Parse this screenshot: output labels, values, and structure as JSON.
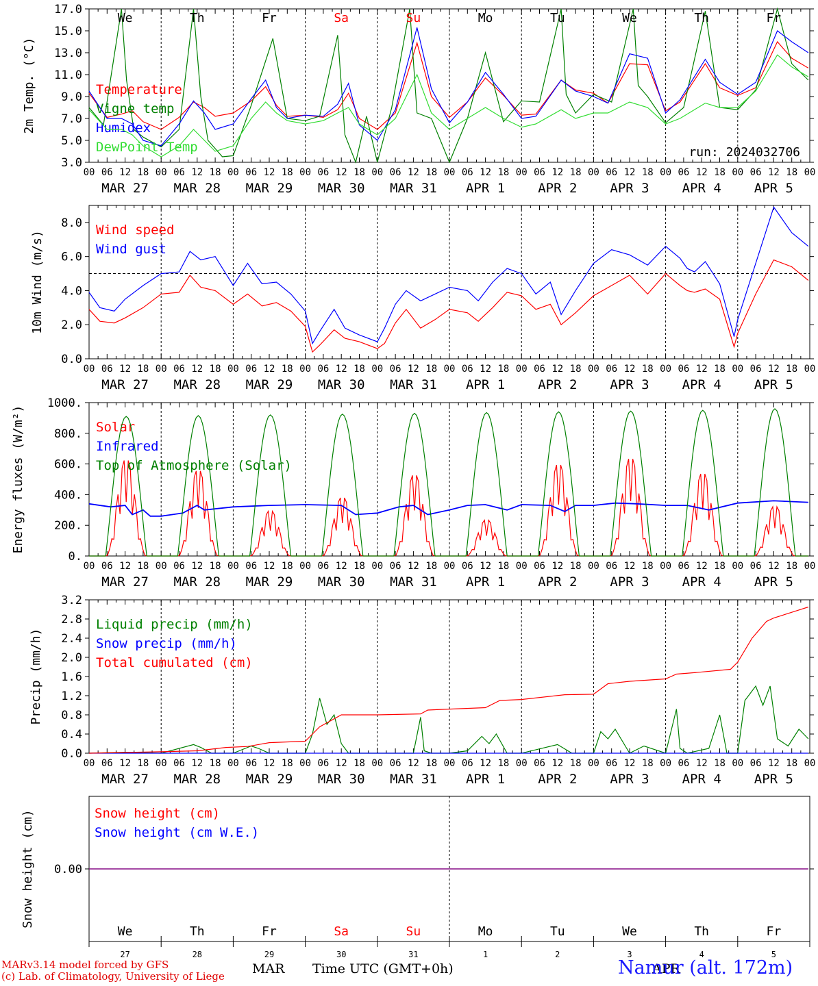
{
  "run_label": "run: 2024032706",
  "footer": {
    "model_line": "MARv3.14 model forced by GFS",
    "credit_line": "(c) Lab. of Climatology, University of Liege",
    "xlabel": "Time UTC (GMT+0h)",
    "month_label": "MAR",
    "month_label2": "APR",
    "station": "Namur (alt. 172m)"
  },
  "colors": {
    "red": "#ff0000",
    "darkgreen": "#008000",
    "blue": "#0000ff",
    "lightgreen": "#33dd33",
    "weekend": "#ff0000",
    "snow_line": "#800080"
  },
  "time_axis": {
    "hour_ticks": [
      "00",
      "06",
      "12",
      "18"
    ],
    "last_tick": "00",
    "dates": [
      "MAR 27",
      "MAR 28",
      "MAR 29",
      "MAR 30",
      "MAR 31",
      "APR 1",
      "APR 2",
      "APR 3",
      "APR 4",
      "APR 5"
    ],
    "days": [
      "We",
      "Th",
      "Fr",
      "Sa",
      "Su",
      "Mo",
      "Tu",
      "We",
      "Th",
      "Fr"
    ],
    "weekend": [
      false,
      false,
      false,
      true,
      true,
      false,
      false,
      false,
      false,
      false
    ],
    "day_numbers": [
      "27",
      "28",
      "29",
      "30",
      "31",
      "1",
      "2",
      "3",
      "4",
      "5"
    ]
  },
  "chart_data": [
    {
      "type": "line",
      "id": "temp",
      "ylabel": "2m Temp. (°C)",
      "ylim": [
        3.0,
        17.0
      ],
      "yticks": [
        3.0,
        5.0,
        7.0,
        9.0,
        11.0,
        13.0,
        15.0,
        17.0
      ],
      "x_unit": "days since 2024-03-27 00 UTC",
      "series": [
        {
          "name": "Temperature",
          "color": "red",
          "x": [
            0,
            0.25,
            0.45,
            0.6,
            0.75,
            1.0,
            1.25,
            1.45,
            1.6,
            1.75,
            2.0,
            2.25,
            2.45,
            2.6,
            2.75,
            3.0,
            3.25,
            3.45,
            3.6,
            3.75,
            4.0,
            4.25,
            4.55,
            4.75,
            5.0,
            5.25,
            5.5,
            5.75,
            6.0,
            6.2,
            6.55,
            6.75,
            7.0,
            7.2,
            7.5,
            7.75,
            8.0,
            8.2,
            8.55,
            8.75,
            9.0,
            9.25,
            9.55,
            9.75,
            9.98
          ],
          "values": [
            9.3,
            7.1,
            7.4,
            7.7,
            6.7,
            6.0,
            7.1,
            8.5,
            8.0,
            7.2,
            7.5,
            8.6,
            9.9,
            8.2,
            7.2,
            7.3,
            7.1,
            7.8,
            9.3,
            7.0,
            6.0,
            7.5,
            13.9,
            9.0,
            7.1,
            8.5,
            10.7,
            9.1,
            7.3,
            7.4,
            10.5,
            9.6,
            9.3,
            8.4,
            12.0,
            11.9,
            7.7,
            8.5,
            12.0,
            9.8,
            9.1,
            9.8,
            14.0,
            12.5,
            11.6
          ]
        },
        {
          "name": "Vigne temp",
          "color": "darkgreen",
          "x": [
            0,
            0.2,
            0.45,
            0.52,
            0.62,
            0.75,
            1.0,
            1.25,
            1.45,
            1.55,
            1.65,
            1.85,
            2.0,
            2.25,
            2.55,
            2.75,
            3.0,
            3.2,
            3.45,
            3.55,
            3.7,
            3.85,
            4.0,
            4.2,
            4.45,
            4.55,
            4.75,
            5.0,
            5.25,
            5.5,
            5.75,
            6.0,
            6.25,
            6.55,
            6.62,
            6.75,
            7.0,
            7.25,
            7.55,
            7.62,
            7.75,
            8.0,
            8.25,
            8.55,
            8.75,
            9.0,
            9.25,
            9.55,
            9.75,
            9.98
          ],
          "values": [
            8.0,
            6.4,
            17.0,
            10.5,
            6.0,
            5.3,
            4.4,
            6.0,
            17.0,
            9.0,
            5.0,
            3.5,
            3.6,
            8.2,
            14.3,
            7.0,
            6.8,
            7.2,
            14.6,
            5.5,
            3.0,
            7.2,
            3.0,
            8.0,
            17.0,
            7.5,
            7.0,
            3.0,
            7.0,
            13.0,
            6.7,
            8.6,
            8.5,
            17.0,
            9.2,
            7.5,
            9.2,
            8.5,
            17.0,
            10.0,
            9.0,
            6.6,
            8.0,
            16.8,
            8.0,
            7.8,
            9.6,
            17.0,
            12.0,
            10.5
          ]
        },
        {
          "name": "Humidex",
          "color": "blue",
          "x": [
            0,
            0.25,
            0.45,
            0.6,
            0.75,
            1.0,
            1.25,
            1.45,
            1.6,
            1.75,
            2.0,
            2.25,
            2.45,
            2.6,
            2.75,
            3.0,
            3.25,
            3.45,
            3.6,
            3.75,
            4.0,
            4.25,
            4.55,
            4.75,
            5.0,
            5.25,
            5.5,
            5.75,
            6.0,
            6.2,
            6.55,
            6.75,
            7.0,
            7.2,
            7.5,
            7.75,
            8.0,
            8.2,
            8.55,
            8.75,
            9.0,
            9.25,
            9.55,
            9.75,
            9.98
          ],
          "values": [
            9.5,
            7.0,
            7.0,
            6.5,
            5.0,
            4.5,
            6.5,
            8.6,
            7.5,
            6.0,
            6.5,
            8.8,
            10.5,
            8.0,
            7.0,
            7.3,
            7.2,
            8.3,
            10.2,
            6.4,
            5.0,
            7.8,
            15.3,
            9.7,
            6.6,
            8.5,
            11.2,
            9.2,
            7.0,
            7.2,
            10.5,
            9.5,
            9.0,
            8.4,
            12.9,
            12.5,
            7.5,
            8.7,
            12.4,
            10.3,
            9.2,
            10.3,
            15.0,
            14.0,
            13.0
          ]
        },
        {
          "name": "DewPoint Temp",
          "color": "lightgreen",
          "x": [
            0,
            0.25,
            0.45,
            0.6,
            0.75,
            1.0,
            1.25,
            1.45,
            1.6,
            1.75,
            2.0,
            2.25,
            2.45,
            2.6,
            2.75,
            3.0,
            3.25,
            3.45,
            3.6,
            3.75,
            4.0,
            4.25,
            4.55,
            4.75,
            5.0,
            5.25,
            5.5,
            5.75,
            6.0,
            6.2,
            6.55,
            6.75,
            7.0,
            7.2,
            7.5,
            7.75,
            8.0,
            8.2,
            8.55,
            8.75,
            9.0,
            9.25,
            9.55,
            9.75,
            9.98
          ],
          "values": [
            7.8,
            6.0,
            6.0,
            5.5,
            4.5,
            3.5,
            4.5,
            6.0,
            5.0,
            4.0,
            4.5,
            7.0,
            8.5,
            7.5,
            6.8,
            6.5,
            6.8,
            7.5,
            8.0,
            6.5,
            5.5,
            7.0,
            11.0,
            7.5,
            6.0,
            7.0,
            8.0,
            7.0,
            6.2,
            6.5,
            7.8,
            7.0,
            7.5,
            7.5,
            8.5,
            8.0,
            6.5,
            7.0,
            8.4,
            8.0,
            8.0,
            9.5,
            12.8,
            11.7,
            10.8
          ]
        }
      ]
    },
    {
      "type": "line",
      "id": "wind",
      "ylabel": "10m Wind (m/s)",
      "ylim": [
        0.0,
        9.0
      ],
      "yticks": [
        0.0,
        2.0,
        4.0,
        6.0,
        8.0
      ],
      "reference_line": 5.0,
      "x_unit": "days since 2024-03-27 00 UTC",
      "series": [
        {
          "name": "Wind speed",
          "color": "red",
          "x": [
            0,
            0.15,
            0.35,
            0.5,
            0.75,
            1.0,
            1.25,
            1.4,
            1.55,
            1.75,
            2.0,
            2.2,
            2.4,
            2.6,
            2.8,
            3.0,
            3.1,
            3.2,
            3.4,
            3.55,
            3.75,
            4.0,
            4.1,
            4.25,
            4.4,
            4.6,
            4.8,
            5.0,
            5.25,
            5.4,
            5.6,
            5.8,
            6.0,
            6.2,
            6.4,
            6.55,
            6.75,
            7.0,
            7.25,
            7.5,
            7.75,
            8.0,
            8.2,
            8.3,
            8.4,
            8.55,
            8.75,
            8.95,
            9.0,
            9.25,
            9.5,
            9.75,
            9.98
          ],
          "values": [
            2.9,
            2.2,
            2.1,
            2.4,
            3.0,
            3.8,
            3.9,
            4.9,
            4.2,
            4.0,
            3.2,
            3.8,
            3.1,
            3.3,
            2.8,
            1.9,
            0.4,
            0.8,
            1.7,
            1.2,
            1.0,
            0.6,
            0.9,
            2.1,
            2.9,
            1.8,
            2.3,
            2.9,
            2.7,
            2.2,
            3.0,
            3.9,
            3.7,
            2.9,
            3.2,
            2.0,
            2.7,
            3.7,
            4.3,
            4.9,
            3.8,
            5.0,
            4.3,
            4.0,
            3.9,
            4.1,
            3.5,
            0.7,
            1.5,
            3.8,
            5.8,
            5.4,
            4.6
          ]
        },
        {
          "name": "Wind gust",
          "color": "blue",
          "x": [
            0,
            0.15,
            0.35,
            0.5,
            0.75,
            1.0,
            1.25,
            1.4,
            1.55,
            1.75,
            2.0,
            2.2,
            2.4,
            2.6,
            2.8,
            3.0,
            3.1,
            3.2,
            3.4,
            3.55,
            3.75,
            4.0,
            4.1,
            4.25,
            4.4,
            4.6,
            4.8,
            5.0,
            5.25,
            5.4,
            5.6,
            5.8,
            6.0,
            6.2,
            6.4,
            6.55,
            6.75,
            7.0,
            7.25,
            7.5,
            7.75,
            8.0,
            8.2,
            8.3,
            8.4,
            8.55,
            8.75,
            8.95,
            9.0,
            9.25,
            9.5,
            9.75,
            9.98
          ],
          "values": [
            3.9,
            3.0,
            2.8,
            3.5,
            4.3,
            5.0,
            5.1,
            6.3,
            5.8,
            6.0,
            4.3,
            5.6,
            4.4,
            4.5,
            3.8,
            2.8,
            0.9,
            1.6,
            2.9,
            1.8,
            1.4,
            1.0,
            1.8,
            3.2,
            4.0,
            3.4,
            3.8,
            4.2,
            4.0,
            3.4,
            4.5,
            5.3,
            5.0,
            3.8,
            4.5,
            2.6,
            4.0,
            5.6,
            6.4,
            6.1,
            5.5,
            6.6,
            5.9,
            5.3,
            5.1,
            5.7,
            4.4,
            1.3,
            2.3,
            5.6,
            8.9,
            7.4,
            6.6
          ]
        }
      ]
    },
    {
      "type": "line",
      "id": "energy",
      "ylabel": "Energy fluxes (W/m²)",
      "ylim": [
        0.0,
        1000.0
      ],
      "yticks": [
        0.0,
        200.0,
        400.0,
        600.0,
        800.0,
        1000.0
      ],
      "ytick_labels": [
        "0.",
        "200.",
        "400.",
        "600.",
        "800.",
        "1000."
      ],
      "x_unit": "days since 2024-03-27 00 UTC",
      "toa_peaks": [
        910,
        915,
        920,
        925,
        930,
        935,
        940,
        945,
        950,
        960
      ],
      "solar_peaks": [
        640,
        570,
        300,
        390,
        540,
        240,
        610,
        650,
        550,
        330
      ],
      "series": [
        {
          "name": "Solar",
          "color": "red"
        },
        {
          "name": "Infrared",
          "color": "blue",
          "x": [
            0,
            0.3,
            0.5,
            0.6,
            0.75,
            0.85,
            1.0,
            1.3,
            1.5,
            1.6,
            2.0,
            2.5,
            3.0,
            3.5,
            3.7,
            4.0,
            4.3,
            4.5,
            4.7,
            5.0,
            5.25,
            5.5,
            5.8,
            6.0,
            6.4,
            6.6,
            6.75,
            7.0,
            7.3,
            7.6,
            8.0,
            8.3,
            8.6,
            9.0,
            9.5,
            9.98
          ],
          "values": [
            340,
            320,
            330,
            270,
            300,
            260,
            260,
            280,
            330,
            300,
            320,
            330,
            335,
            330,
            270,
            280,
            320,
            330,
            270,
            300,
            330,
            335,
            300,
            335,
            330,
            290,
            330,
            330,
            345,
            340,
            330,
            330,
            300,
            345,
            360,
            350
          ]
        },
        {
          "name": "Top of Atmosphere (Solar)",
          "color": "darkgreen"
        }
      ]
    },
    {
      "type": "line",
      "id": "precip",
      "ylabel": "Precip (mm/h)",
      "ylim": [
        0.0,
        3.2
      ],
      "yticks": [
        0.0,
        0.4,
        0.8,
        1.2,
        1.6,
        2.0,
        2.4,
        2.8,
        3.2
      ],
      "x_unit": "days since 2024-03-27 00 UTC",
      "series": [
        {
          "name": "Liquid precip (mm/h)",
          "color": "darkgreen",
          "x": [
            0,
            0.5,
            1.0,
            1.45,
            1.55,
            1.7,
            2.0,
            2.25,
            2.35,
            2.5,
            3.0,
            3.1,
            3.2,
            3.3,
            3.4,
            3.5,
            3.6,
            3.7,
            4.0,
            4.5,
            4.6,
            4.65,
            4.75,
            5.0,
            5.25,
            5.45,
            5.55,
            5.65,
            5.8,
            6.0,
            6.5,
            6.7,
            7.0,
            7.1,
            7.2,
            7.3,
            7.5,
            7.7,
            8.0,
            8.15,
            8.2,
            8.3,
            8.6,
            8.75,
            8.85,
            9.0,
            9.1,
            9.25,
            9.35,
            9.45,
            9.55,
            9.7,
            9.85,
            9.98
          ],
          "values": [
            0.0,
            0.02,
            0.0,
            0.18,
            0.12,
            0.0,
            0.0,
            0.15,
            0.1,
            0.0,
            0.0,
            0.4,
            1.15,
            0.6,
            0.8,
            0.2,
            0.0,
            0.0,
            0.0,
            0.0,
            0.75,
            0.05,
            0.0,
            0.0,
            0.05,
            0.35,
            0.2,
            0.4,
            0.0,
            0.0,
            0.18,
            0.0,
            0.0,
            0.45,
            0.3,
            0.5,
            0.0,
            0.15,
            0.0,
            0.92,
            0.1,
            0.0,
            0.1,
            0.8,
            0.0,
            0.0,
            1.1,
            1.4,
            1.0,
            1.4,
            0.3,
            0.15,
            0.5,
            0.3
          ]
        },
        {
          "name": "Snow precip (mm/h)",
          "color": "blue",
          "x": [
            0,
            9.98
          ],
          "values": [
            0.0,
            0.0
          ]
        },
        {
          "name": "Total cumulated (cm)",
          "color": "red",
          "x": [
            0,
            1.0,
            1.5,
            1.9,
            2.2,
            2.5,
            3.0,
            3.2,
            3.5,
            4.0,
            4.6,
            4.7,
            5.0,
            5.5,
            5.7,
            6.0,
            6.6,
            7.0,
            7.2,
            7.5,
            8.0,
            8.15,
            8.4,
            8.9,
            9.0,
            9.2,
            9.4,
            9.5,
            9.98
          ],
          "values": [
            0.0,
            0.03,
            0.05,
            0.12,
            0.14,
            0.22,
            0.25,
            0.55,
            0.8,
            0.8,
            0.82,
            0.9,
            0.92,
            0.95,
            1.1,
            1.12,
            1.22,
            1.23,
            1.45,
            1.5,
            1.55,
            1.65,
            1.68,
            1.75,
            1.9,
            2.4,
            2.75,
            2.82,
            3.05
          ]
        }
      ]
    },
    {
      "type": "line",
      "id": "snow",
      "ylabel": "Snow height (cm)",
      "ylim": [
        -1.0,
        1.0
      ],
      "yticks": [
        0.0
      ],
      "ytick_labels": [
        "0.00"
      ],
      "x_unit": "days since 2024-03-27 00 UTC",
      "series": [
        {
          "name": "Snow height (cm)",
          "color": "red",
          "x": [
            0,
            9.98
          ],
          "values": [
            0.0,
            0.0
          ]
        },
        {
          "name": "Snow height (cm W.E.)",
          "color": "blue",
          "x": [
            0,
            9.98
          ],
          "values": [
            0.0,
            0.0
          ]
        }
      ]
    }
  ]
}
